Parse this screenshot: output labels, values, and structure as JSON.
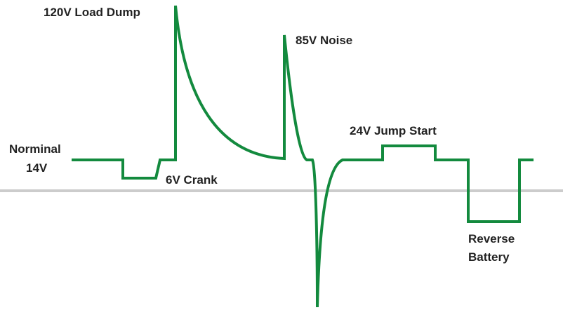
{
  "labels": {
    "load_dump": "120V Load Dump",
    "noise": "85V Noise",
    "jump_start": "24V Jump Start",
    "nominal_line1": "Norminal",
    "nominal_line2": "14V",
    "crank": "6V Crank",
    "reverse_line1": "Reverse",
    "reverse_line2": "Battery"
  }
}
